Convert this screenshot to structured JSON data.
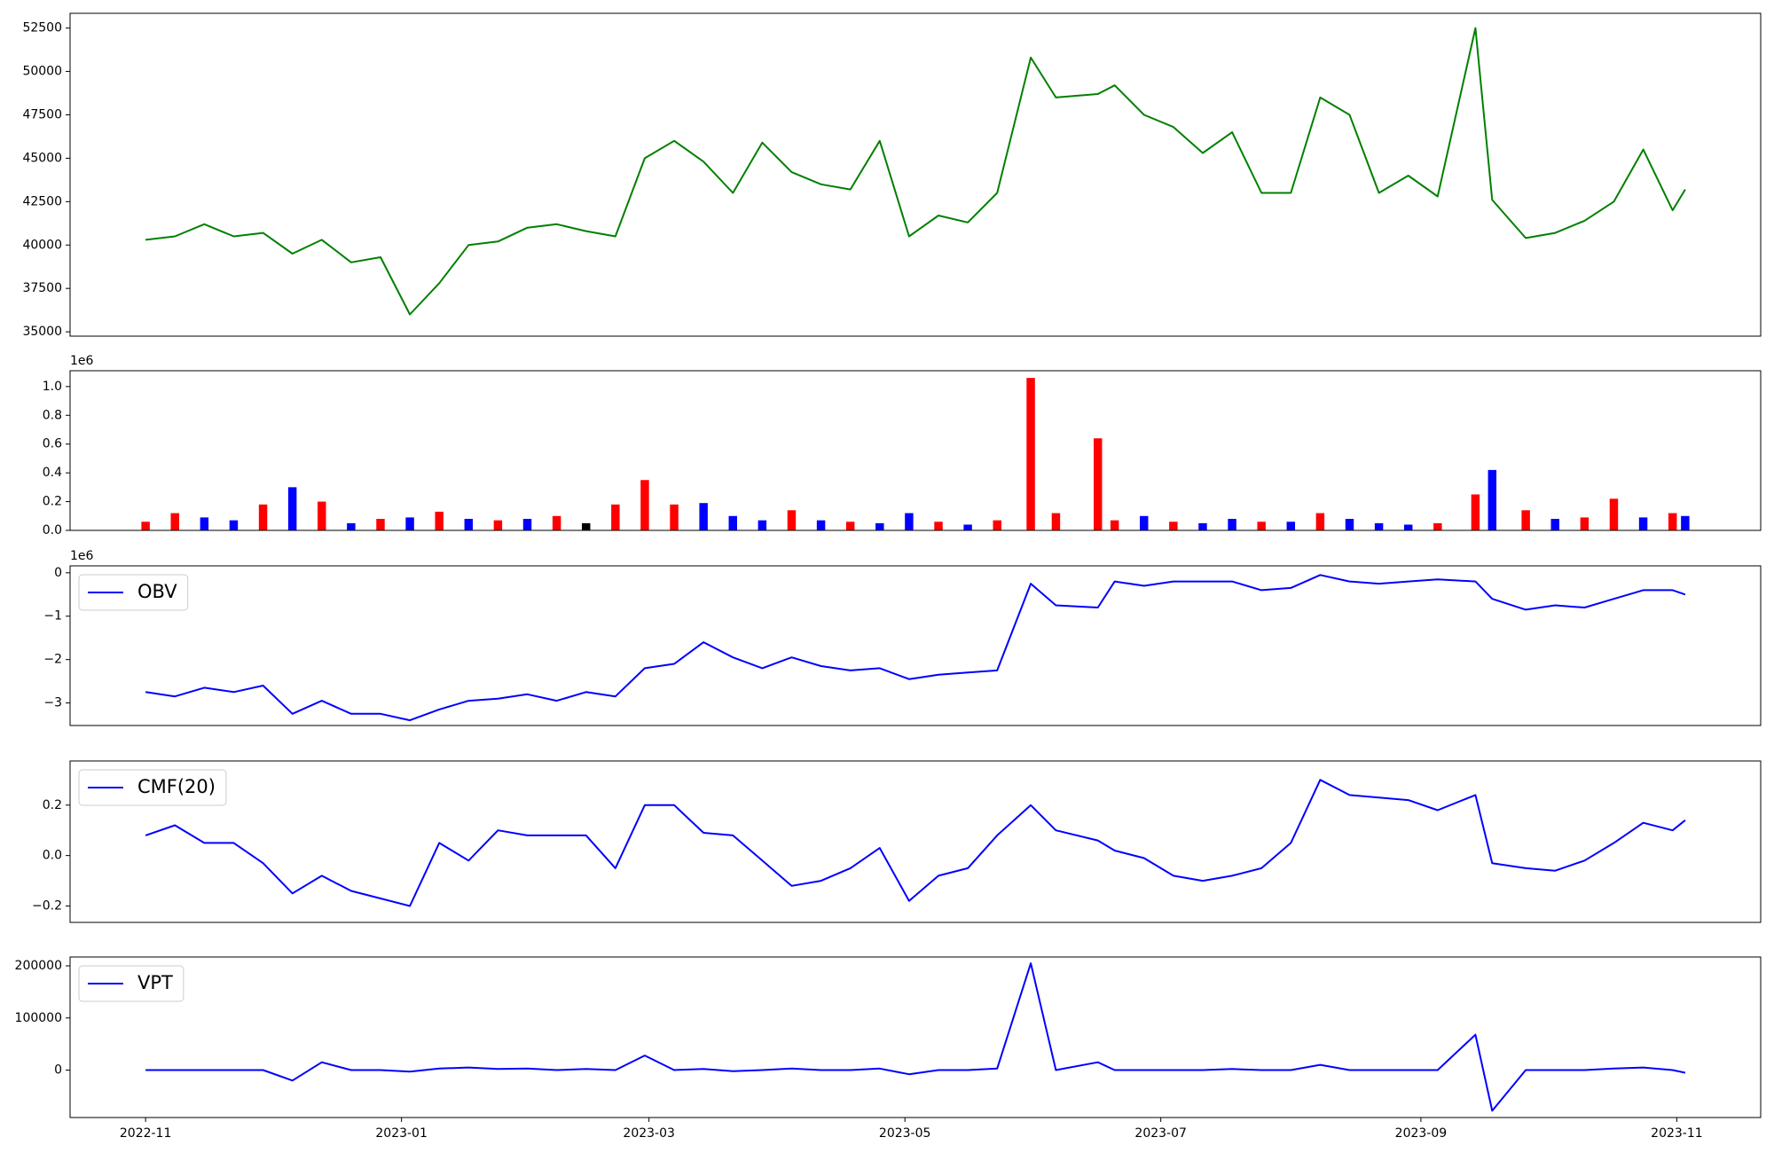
{
  "chart_data": [
    {
      "type": "line",
      "x": [
        "2022-11-01",
        "2022-11-08",
        "2022-11-15",
        "2022-11-22",
        "2022-11-29",
        "2022-12-06",
        "2022-12-13",
        "2022-12-20",
        "2022-12-27",
        "2023-01-03",
        "2023-01-10",
        "2023-01-17",
        "2023-01-24",
        "2023-01-31",
        "2023-02-07",
        "2023-02-14",
        "2023-02-21",
        "2023-02-28",
        "2023-03-07",
        "2023-03-14",
        "2023-03-21",
        "2023-03-28",
        "2023-04-04",
        "2023-04-11",
        "2023-04-18",
        "2023-04-25",
        "2023-05-02",
        "2023-05-09",
        "2023-05-16",
        "2023-05-23",
        "2023-05-31",
        "2023-06-06",
        "2023-06-16",
        "2023-06-20",
        "2023-06-27",
        "2023-07-04",
        "2023-07-11",
        "2023-07-18",
        "2023-07-25",
        "2023-08-01",
        "2023-08-08",
        "2023-08-15",
        "2023-08-22",
        "2023-08-29",
        "2023-09-05",
        "2023-09-14",
        "2023-09-18",
        "2023-09-26",
        "2023-10-03",
        "2023-10-10",
        "2023-10-17",
        "2023-10-24",
        "2023-10-31",
        "2023-11-03"
      ],
      "series": [
        {
          "color": "#008000",
          "values": [
            40300,
            40500,
            41200,
            40500,
            40700,
            39500,
            40300,
            39000,
            39300,
            36000,
            37800,
            40000,
            40200,
            41000,
            41200,
            40800,
            40500,
            45000,
            46000,
            44800,
            43000,
            45900,
            44200,
            43500,
            43200,
            46000,
            40500,
            41700,
            41300,
            43000,
            50800,
            48500,
            48700,
            49200,
            47500,
            46800,
            45300,
            46500,
            43000,
            43000,
            48500,
            47500,
            43000,
            44000,
            42800,
            52500,
            42600,
            40400,
            40700,
            41400,
            42500,
            45500,
            42000,
            43200
          ]
        }
      ],
      "xlim": [
        "2022-10-14",
        "2023-11-21"
      ],
      "ylim": [
        34750,
        53350
      ],
      "yticks": [
        35000,
        37500,
        40000,
        42500,
        45000,
        47500,
        50000,
        52500
      ]
    },
    {
      "type": "bar",
      "offset_text": "1e6",
      "x": [
        "2022-11-01",
        "2022-11-08",
        "2022-11-15",
        "2022-11-22",
        "2022-11-29",
        "2022-12-06",
        "2022-12-13",
        "2022-12-20",
        "2022-12-27",
        "2023-01-03",
        "2023-01-10",
        "2023-01-17",
        "2023-01-24",
        "2023-01-31",
        "2023-02-07",
        "2023-02-14",
        "2023-02-21",
        "2023-02-28",
        "2023-03-07",
        "2023-03-14",
        "2023-03-21",
        "2023-03-28",
        "2023-04-04",
        "2023-04-11",
        "2023-04-18",
        "2023-04-25",
        "2023-05-02",
        "2023-05-09",
        "2023-05-16",
        "2023-05-23",
        "2023-05-31",
        "2023-06-06",
        "2023-06-16",
        "2023-06-20",
        "2023-06-27",
        "2023-07-04",
        "2023-07-11",
        "2023-07-18",
        "2023-07-25",
        "2023-08-01",
        "2023-08-08",
        "2023-08-15",
        "2023-08-22",
        "2023-08-29",
        "2023-09-05",
        "2023-09-14",
        "2023-09-18",
        "2023-09-26",
        "2023-10-03",
        "2023-10-10",
        "2023-10-17",
        "2023-10-24",
        "2023-10-31",
        "2023-11-03"
      ],
      "values": [
        0.06,
        0.12,
        0.09,
        0.07,
        0.18,
        0.3,
        0.2,
        0.05,
        0.08,
        0.09,
        0.13,
        0.08,
        0.07,
        0.08,
        0.1,
        0.05,
        0.18,
        0.35,
        0.18,
        0.19,
        0.1,
        0.07,
        0.14,
        0.07,
        0.06,
        0.05,
        0.12,
        0.06,
        0.04,
        0.07,
        1.06,
        0.12,
        0.64,
        0.07,
        0.1,
        0.06,
        0.05,
        0.08,
        0.06,
        0.06,
        0.12,
        0.08,
        0.05,
        0.04,
        0.05,
        0.25,
        0.42,
        0.14,
        0.08,
        0.09,
        0.22,
        0.09,
        0.12,
        0.1
      ],
      "colors": [
        "#ff0000",
        "#ff0000",
        "#0000ff",
        "#0000ff",
        "#ff0000",
        "#0000ff",
        "#ff0000",
        "#0000ff",
        "#ff0000",
        "#0000ff",
        "#ff0000",
        "#0000ff",
        "#ff0000",
        "#0000ff",
        "#ff0000",
        "#000000",
        "#ff0000",
        "#ff0000",
        "#ff0000",
        "#0000ff",
        "#0000ff",
        "#0000ff",
        "#ff0000",
        "#0000ff",
        "#ff0000",
        "#0000ff",
        "#0000ff",
        "#ff0000",
        "#0000ff",
        "#ff0000",
        "#ff0000",
        "#ff0000",
        "#ff0000",
        "#ff0000",
        "#0000ff",
        "#ff0000",
        "#0000ff",
        "#0000ff",
        "#ff0000",
        "#0000ff",
        "#ff0000",
        "#0000ff",
        "#0000ff",
        "#0000ff",
        "#ff0000",
        "#ff0000",
        "#0000ff",
        "#ff0000",
        "#0000ff",
        "#ff0000",
        "#ff0000",
        "#0000ff",
        "#ff0000",
        "#0000ff"
      ],
      "xlim": [
        "2022-10-14",
        "2023-11-21"
      ],
      "ylim": [
        0,
        1.11
      ],
      "yticks": [
        {
          "value": 0,
          "label": "0.0"
        },
        0.2,
        0.4,
        0.6,
        0.8,
        {
          "value": 1,
          "label": "1.0"
        }
      ]
    },
    {
      "type": "line",
      "offset_text": "1e6",
      "legend": "upper left",
      "x": [
        "2022-11-01",
        "2022-11-08",
        "2022-11-15",
        "2022-11-22",
        "2022-11-29",
        "2022-12-06",
        "2022-12-13",
        "2022-12-20",
        "2022-12-27",
        "2023-01-03",
        "2023-01-10",
        "2023-01-17",
        "2023-01-24",
        "2023-01-31",
        "2023-02-07",
        "2023-02-14",
        "2023-02-21",
        "2023-02-28",
        "2023-03-07",
        "2023-03-14",
        "2023-03-21",
        "2023-03-28",
        "2023-04-04",
        "2023-04-11",
        "2023-04-18",
        "2023-04-25",
        "2023-05-02",
        "2023-05-09",
        "2023-05-16",
        "2023-05-23",
        "2023-05-31",
        "2023-06-06",
        "2023-06-16",
        "2023-06-20",
        "2023-06-27",
        "2023-07-04",
        "2023-07-11",
        "2023-07-18",
        "2023-07-25",
        "2023-08-01",
        "2023-08-08",
        "2023-08-15",
        "2023-08-22",
        "2023-08-29",
        "2023-09-05",
        "2023-09-14",
        "2023-09-18",
        "2023-09-26",
        "2023-10-03",
        "2023-10-10",
        "2023-10-17",
        "2023-10-24",
        "2023-10-31",
        "2023-11-03"
      ],
      "series": [
        {
          "name": "OBV",
          "color": "#0000ff",
          "values": [
            -2.75,
            -2.85,
            -2.65,
            -2.75,
            -2.6,
            -3.25,
            -2.95,
            -3.25,
            -3.25,
            -3.4,
            -3.15,
            -2.95,
            -2.9,
            -2.8,
            -2.95,
            -2.75,
            -2.85,
            -2.2,
            -2.1,
            -1.6,
            -1.95,
            -2.2,
            -1.95,
            -2.15,
            -2.25,
            -2.2,
            -2.45,
            -2.35,
            -2.3,
            -2.25,
            -0.25,
            -0.75,
            -0.8,
            -0.2,
            -0.3,
            -0.2,
            -0.2,
            -0.2,
            -0.4,
            -0.35,
            -0.05,
            -0.2,
            -0.25,
            -0.2,
            -0.15,
            -0.2,
            -0.6,
            -0.85,
            -0.75,
            -0.8,
            -0.6,
            -0.4,
            -0.4,
            -0.5
          ]
        }
      ],
      "xlim": [
        "2022-10-14",
        "2023-11-21"
      ],
      "ylim": [
        -3.52,
        0.16
      ],
      "yticks": [
        {
          "value": -3,
          "label": "−3"
        },
        {
          "value": -2,
          "label": "−2"
        },
        {
          "value": -1,
          "label": "−1"
        },
        0
      ]
    },
    {
      "type": "line",
      "legend": "upper left",
      "x": [
        "2022-11-01",
        "2022-11-08",
        "2022-11-15",
        "2022-11-22",
        "2022-11-29",
        "2022-12-06",
        "2022-12-13",
        "2022-12-20",
        "2022-12-27",
        "2023-01-03",
        "2023-01-10",
        "2023-01-17",
        "2023-01-24",
        "2023-01-31",
        "2023-02-07",
        "2023-02-14",
        "2023-02-21",
        "2023-02-28",
        "2023-03-07",
        "2023-03-14",
        "2023-03-21",
        "2023-03-28",
        "2023-04-04",
        "2023-04-11",
        "2023-04-18",
        "2023-04-25",
        "2023-05-02",
        "2023-05-09",
        "2023-05-16",
        "2023-05-23",
        "2023-05-31",
        "2023-06-06",
        "2023-06-16",
        "2023-06-20",
        "2023-06-27",
        "2023-07-04",
        "2023-07-11",
        "2023-07-18",
        "2023-07-25",
        "2023-08-01",
        "2023-08-08",
        "2023-08-15",
        "2023-08-22",
        "2023-08-29",
        "2023-09-05",
        "2023-09-14",
        "2023-09-18",
        "2023-09-26",
        "2023-10-03",
        "2023-10-10",
        "2023-10-17",
        "2023-10-24",
        "2023-10-31",
        "2023-11-03"
      ],
      "series": [
        {
          "name": "CMF(20)",
          "color": "#0000ff",
          "values": [
            0.08,
            0.12,
            0.05,
            0.05,
            -0.03,
            -0.15,
            -0.08,
            -0.14,
            -0.17,
            -0.2,
            0.05,
            -0.02,
            0.1,
            0.08,
            0.08,
            0.08,
            -0.05,
            0.2,
            0.2,
            0.09,
            0.08,
            -0.02,
            -0.12,
            -0.1,
            -0.05,
            0.03,
            -0.18,
            -0.08,
            -0.05,
            0.08,
            0.2,
            0.1,
            0.06,
            0.02,
            -0.01,
            -0.08,
            -0.1,
            -0.08,
            -0.05,
            0.05,
            0.3,
            0.24,
            0.23,
            0.22,
            0.18,
            0.24,
            -0.03,
            -0.05,
            -0.06,
            -0.02,
            0.05,
            0.13,
            0.1,
            0.14
          ]
        }
      ],
      "xlim": [
        "2022-10-14",
        "2023-11-21"
      ],
      "ylim": [
        -0.265,
        0.375
      ],
      "yticks": [
        {
          "value": -0.2,
          "label": "−0.2"
        },
        {
          "value": 0,
          "label": "0.0"
        },
        0.2
      ]
    },
    {
      "type": "line",
      "legend": "upper left",
      "x": [
        "2022-11-01",
        "2022-11-08",
        "2022-11-15",
        "2022-11-22",
        "2022-11-29",
        "2022-12-06",
        "2022-12-13",
        "2022-12-20",
        "2022-12-27",
        "2023-01-03",
        "2023-01-10",
        "2023-01-17",
        "2023-01-24",
        "2023-01-31",
        "2023-02-07",
        "2023-02-14",
        "2023-02-21",
        "2023-02-28",
        "2023-03-07",
        "2023-03-14",
        "2023-03-21",
        "2023-03-28",
        "2023-04-04",
        "2023-04-11",
        "2023-04-18",
        "2023-04-25",
        "2023-05-02",
        "2023-05-09",
        "2023-05-16",
        "2023-05-23",
        "2023-05-31",
        "2023-06-06",
        "2023-06-16",
        "2023-06-20",
        "2023-06-27",
        "2023-07-04",
        "2023-07-11",
        "2023-07-18",
        "2023-07-25",
        "2023-08-01",
        "2023-08-08",
        "2023-08-15",
        "2023-08-22",
        "2023-08-29",
        "2023-09-05",
        "2023-09-14",
        "2023-09-18",
        "2023-09-26",
        "2023-10-03",
        "2023-10-10",
        "2023-10-17",
        "2023-10-24",
        "2023-10-31",
        "2023-11-03"
      ],
      "series": [
        {
          "name": "VPT",
          "color": "#0000ff",
          "values": [
            0,
            0,
            0,
            0,
            0,
            -20000,
            15000,
            0,
            0,
            -3000,
            3000,
            5000,
            2000,
            3000,
            0,
            2000,
            0,
            28000,
            0,
            2000,
            -2000,
            0,
            3000,
            0,
            0,
            3000,
            -8000,
            0,
            0,
            3000,
            205000,
            0,
            15000,
            0,
            0,
            0,
            0,
            2000,
            0,
            0,
            10000,
            0,
            0,
            0,
            0,
            68000,
            -78000,
            0,
            0,
            0,
            3000,
            5000,
            0,
            -5000
          ]
        }
      ],
      "xlim": [
        "2022-10-14",
        "2023-11-21"
      ],
      "ylim": [
        -91000,
        217000
      ],
      "yticks": [
        0,
        100000,
        200000
      ],
      "xticks": [
        {
          "value": "2022-11-01",
          "label": "2022-11"
        },
        {
          "value": "2023-01-01",
          "label": "2023-01"
        },
        {
          "value": "2023-03-01",
          "label": "2023-03"
        },
        {
          "value": "2023-05-01",
          "label": "2023-05"
        },
        {
          "value": "2023-07-01",
          "label": "2023-07"
        },
        {
          "value": "2023-09-01",
          "label": "2023-09"
        },
        {
          "value": "2023-11-01",
          "label": "2023-11"
        }
      ]
    }
  ]
}
